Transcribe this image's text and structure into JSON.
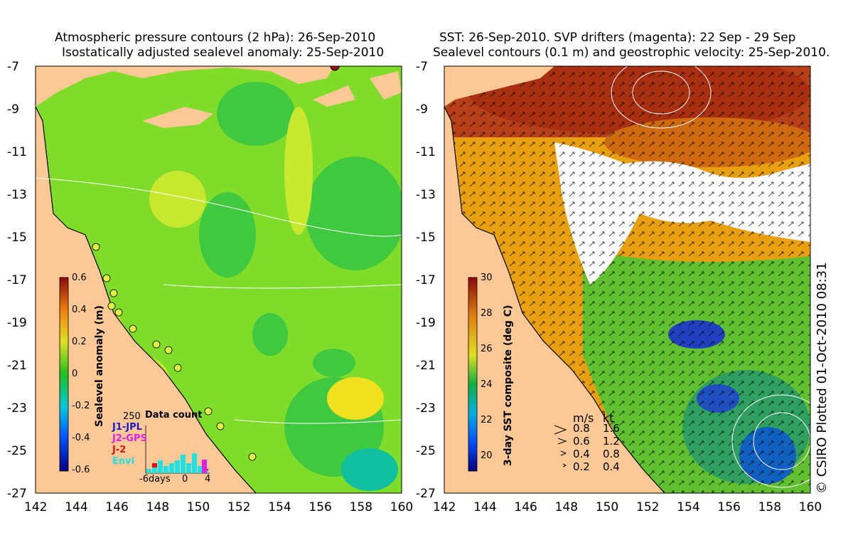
{
  "left_panel": {
    "title_line1": "Atmospheric pressure contours (2 hPa): 26-Sep-2010",
    "title_line2": "Isostatically adjusted sealevel anomaly: 25-Sep-2010",
    "colorbar_label": "Sealevel anomaly (m)",
    "colorbar_ticks": [
      "0.6",
      "0.4",
      "0.2",
      "0",
      "-0.2",
      "-0.4",
      "-0.6"
    ],
    "data_count": {
      "title": "Data count",
      "max_label": "250",
      "legend": [
        {
          "label": "J1-JPL",
          "color": "#1a1acc"
        },
        {
          "label": "J2-GPS",
          "color": "#e020e0"
        },
        {
          "label": "J-2",
          "color": "#e01010"
        },
        {
          "label": "Envi",
          "color": "#20e0e0"
        }
      ],
      "x_labels": [
        "-6days",
        "0",
        "4"
      ]
    }
  },
  "right_panel": {
    "title_line1": "SST: 26-Sep-2010. SVP drifters (magenta): 22 Sep - 29 Sep",
    "title_line2": "Sealevel contours (0.1 m) and geostrophic velocity: 25-Sep-2010.",
    "colorbar_label": "3-day SST composite (deg C)",
    "colorbar_ticks": [
      "30",
      "28",
      "26",
      "24",
      "22",
      "20"
    ],
    "velocity_legend": {
      "header_ms": "m/s",
      "header_kt": "kt",
      "rows": [
        {
          "ms": "0.8",
          "kt": "1.6"
        },
        {
          "ms": "0.6",
          "kt": "1.2"
        },
        {
          "ms": "0.4",
          "kt": "0.8"
        },
        {
          "ms": "0.2",
          "kt": "0.4"
        }
      ]
    }
  },
  "axes": {
    "lat_ticks": [
      "-7",
      "-9",
      "-11",
      "-13",
      "-15",
      "-17",
      "-19",
      "-21",
      "-23",
      "-25",
      "-27"
    ],
    "lon_ticks": [
      "142",
      "144",
      "146",
      "148",
      "150",
      "152",
      "154",
      "156",
      "158",
      "160"
    ]
  },
  "credit": "© CSIRO Plotted 01-Oct-2010 08:31",
  "colors": {
    "land": "#fbc896",
    "sla_green": "#7fdc28",
    "sst_warm": "#e08a10",
    "sst_hot": "#a83010",
    "cloud": "#ffffff"
  }
}
